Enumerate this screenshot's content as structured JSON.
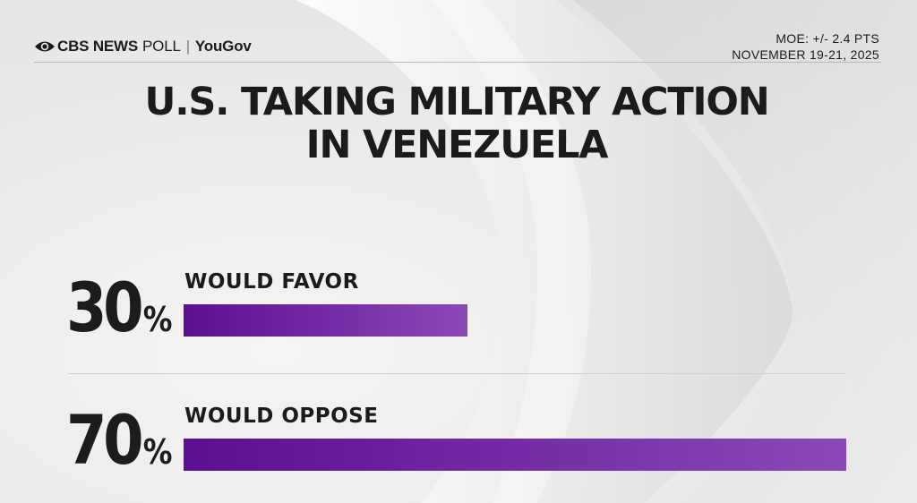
{
  "header": {
    "brand_cbs": "CBS NEWS",
    "brand_poll": "POLL",
    "brand_sep": "|",
    "brand_partner": "YouGov",
    "moe": "MOE: +/- 2.4 PTS",
    "dates": "NOVEMBER 19-21, 2025"
  },
  "colors": {
    "bar_start": "#5b0f92",
    "bar_end": "#8b49b8",
    "text": "#1b1b1b"
  },
  "chart_data": {
    "type": "bar",
    "orientation": "horizontal",
    "title": "U.S. TAKING MILITARY ACTION IN VENEZUELA",
    "title_lines": [
      "U.S. TAKING MILITARY ACTION",
      "IN VENEZUELA"
    ],
    "categories": [
      "WOULD FAVOR",
      "WOULD OPPOSE"
    ],
    "values": [
      30,
      70
    ],
    "value_labels": [
      "30",
      "70"
    ],
    "unit": "%",
    "xlim": [
      0,
      70
    ],
    "grid": false,
    "legend": "none"
  }
}
